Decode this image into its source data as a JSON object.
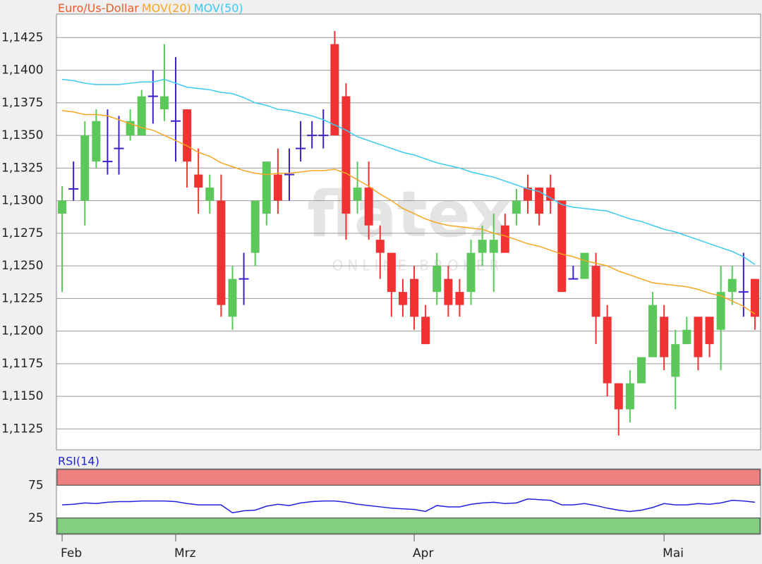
{
  "chart_data": [
    {
      "type": "candlestick",
      "name": "Euro/Us-Dollar",
      "color": "#f05a28",
      "color_up": "#5cc85c",
      "color_down": "#f03232",
      "color_doji": "#3a22c8",
      "categories": [
        "Feb",
        null,
        null,
        null,
        null,
        null,
        null,
        null,
        null,
        null,
        "Mrz",
        null,
        null,
        null,
        null,
        null,
        null,
        null,
        null,
        null,
        null,
        null,
        null,
        null,
        null,
        null,
        null,
        null,
        null,
        null,
        null,
        "Apr",
        null,
        null,
        null,
        null,
        null,
        null,
        null,
        null,
        null,
        null,
        null,
        null,
        null,
        null,
        null,
        null,
        null,
        null,
        null,
        null,
        null,
        "Mai",
        null,
        null,
        null,
        null,
        null,
        null,
        null,
        null
      ],
      "open": [
        1.129,
        1.1309,
        1.13,
        1.133,
        1.133,
        1.134,
        1.135,
        1.135,
        1.138,
        1.137,
        1.1361,
        1.137,
        1.132,
        1.13,
        1.13,
        1.1211,
        1.124,
        1.126,
        1.129,
        1.132,
        1.132,
        1.134,
        1.135,
        1.135,
        1.142,
        1.138,
        1.13,
        1.131,
        1.127,
        1.126,
        1.123,
        1.124,
        1.1211,
        1.123,
        1.124,
        1.123,
        1.123,
        1.126,
        1.126,
        1.1281,
        1.129,
        1.131,
        1.131,
        1.131,
        1.13,
        1.124,
        1.124,
        1.125,
        1.1211,
        1.116,
        1.114,
        1.116,
        1.118,
        1.1211,
        1.1165,
        1.119,
        1.1211,
        1.1211,
        1.1201,
        1.123,
        1.123,
        1.124
      ],
      "high": [
        1.1311,
        1.133,
        1.1361,
        1.137,
        1.137,
        1.1365,
        1.137,
        1.1385,
        1.14,
        1.142,
        1.141,
        1.137,
        1.134,
        1.132,
        1.132,
        1.125,
        1.126,
        1.13,
        1.133,
        1.134,
        1.134,
        1.1361,
        1.1361,
        1.137,
        1.143,
        1.139,
        1.133,
        1.133,
        1.1281,
        1.126,
        1.124,
        1.125,
        1.122,
        1.126,
        1.125,
        1.124,
        1.127,
        1.1281,
        1.129,
        1.129,
        1.1309,
        1.132,
        1.131,
        1.132,
        1.13,
        1.125,
        1.126,
        1.126,
        1.122,
        1.116,
        1.117,
        1.118,
        1.123,
        1.122,
        1.1201,
        1.1211,
        1.1211,
        1.1211,
        1.125,
        1.125,
        1.126,
        1.124
      ],
      "low": [
        1.123,
        1.13,
        1.1281,
        1.1325,
        1.132,
        1.132,
        1.1346,
        1.135,
        1.1359,
        1.1361,
        1.133,
        1.131,
        1.129,
        1.129,
        1.1211,
        1.1201,
        1.122,
        1.125,
        1.1281,
        1.129,
        1.13,
        1.133,
        1.134,
        1.134,
        1.135,
        1.127,
        1.129,
        1.127,
        1.124,
        1.1211,
        1.1211,
        1.1201,
        1.119,
        1.122,
        1.1211,
        1.1211,
        1.122,
        1.125,
        1.123,
        1.126,
        1.1281,
        1.129,
        1.1281,
        1.129,
        1.123,
        1.124,
        1.124,
        1.119,
        1.115,
        1.112,
        1.113,
        1.116,
        1.118,
        1.117,
        1.114,
        1.119,
        1.117,
        1.118,
        1.117,
        1.122,
        1.1211,
        1.1201
      ],
      "close": [
        1.13,
        1.1309,
        1.135,
        1.1361,
        1.133,
        1.134,
        1.1361,
        1.138,
        1.138,
        1.138,
        1.1361,
        1.133,
        1.131,
        1.131,
        1.122,
        1.124,
        1.124,
        1.13,
        1.133,
        1.13,
        1.132,
        1.134,
        1.135,
        1.135,
        1.135,
        1.129,
        1.131,
        1.1281,
        1.126,
        1.123,
        1.122,
        1.1211,
        1.119,
        1.125,
        1.122,
        1.122,
        1.126,
        1.127,
        1.127,
        1.126,
        1.13,
        1.13,
        1.129,
        1.13,
        1.123,
        1.124,
        1.126,
        1.1211,
        1.116,
        1.114,
        1.116,
        1.118,
        1.122,
        1.118,
        1.119,
        1.1201,
        1.118,
        1.119,
        1.123,
        1.124,
        1.123,
        1.1211
      ],
      "series": [
        {
          "name": "MOV(20)",
          "color": "#f5a623",
          "values": [
            1.1369,
            1.1368,
            1.1366,
            1.1366,
            1.1365,
            1.1362,
            1.1359,
            1.1356,
            1.1354,
            1.135,
            1.1346,
            1.1342,
            1.1337,
            1.1334,
            1.1329,
            1.1326,
            1.1323,
            1.1321,
            1.132,
            1.1321,
            1.1321,
            1.1322,
            1.1323,
            1.1323,
            1.1324,
            1.1321,
            1.1316,
            1.1311,
            1.1305,
            1.13,
            1.1294,
            1.129,
            1.1286,
            1.1283,
            1.1281,
            1.128,
            1.1279,
            1.1278,
            1.1275,
            1.1273,
            1.127,
            1.1267,
            1.1265,
            1.1262,
            1.1259,
            1.1257,
            1.1254,
            1.1252,
            1.125,
            1.1246,
            1.1243,
            1.124,
            1.1237,
            1.1236,
            1.1235,
            1.1234,
            1.1232,
            1.1229,
            1.1227,
            1.1223,
            1.1219,
            1.1213
          ]
        },
        {
          "name": "MOV(50)",
          "color": "#3cc8f0",
          "values": [
            1.1393,
            1.1392,
            1.139,
            1.1389,
            1.1389,
            1.1389,
            1.139,
            1.1391,
            1.1391,
            1.1393,
            1.139,
            1.1387,
            1.1386,
            1.1385,
            1.1383,
            1.1382,
            1.1379,
            1.1375,
            1.1373,
            1.137,
            1.1369,
            1.1367,
            1.1365,
            1.1362,
            1.1358,
            1.1354,
            1.1349,
            1.1346,
            1.1343,
            1.134,
            1.1337,
            1.1335,
            1.1332,
            1.1329,
            1.1327,
            1.1325,
            1.1322,
            1.132,
            1.1318,
            1.1315,
            1.1312,
            1.1309,
            1.1307,
            1.1302,
            1.1297,
            1.1295,
            1.1294,
            1.1293,
            1.1292,
            1.1289,
            1.1286,
            1.1284,
            1.1281,
            1.1278,
            1.1276,
            1.1273,
            1.127,
            1.1267,
            1.1264,
            1.1261,
            1.1257,
            1.1251
          ]
        }
      ],
      "ylim": [
        1.1109,
        1.1443
      ],
      "yticks": [
        {
          "value": 1.1125,
          "label": "1,1125"
        },
        {
          "value": 1.115,
          "label": "1,1150"
        },
        {
          "value": 1.1175,
          "label": "1,1175"
        },
        {
          "value": 1.12,
          "label": "1,1200"
        },
        {
          "value": 1.1225,
          "label": "1,1225"
        },
        {
          "value": 1.125,
          "label": "1,1250"
        },
        {
          "value": 1.1275,
          "label": "1,1275"
        },
        {
          "value": 1.13,
          "label": "1,1300"
        },
        {
          "value": 1.1325,
          "label": "1,1325"
        },
        {
          "value": 1.135,
          "label": "1,1350"
        },
        {
          "value": 1.1375,
          "label": "1,1375"
        },
        {
          "value": 1.14,
          "label": "1,1400"
        },
        {
          "value": 1.1425,
          "label": "1,1425"
        }
      ],
      "grid": true,
      "watermark": "flatex",
      "watermark_sub": "ONLINE BROKER"
    },
    {
      "type": "line",
      "series": [
        {
          "name": "RSI(14)",
          "color": "#2020e0",
          "values": [
            45,
            46,
            48,
            47,
            49,
            50,
            50,
            51,
            51,
            51,
            50,
            47,
            45,
            45,
            45,
            33,
            36,
            37,
            43,
            46,
            44,
            48,
            50,
            51,
            51,
            49,
            46,
            44,
            42,
            40,
            39,
            38,
            35,
            44,
            42,
            42,
            46,
            48,
            49,
            47,
            48,
            54,
            53,
            52,
            45,
            45,
            47,
            44,
            40,
            37,
            35,
            37,
            41,
            47,
            45,
            45,
            47,
            46,
            48,
            52,
            51,
            49
          ]
        }
      ],
      "ylim": [
        0,
        100
      ],
      "yticks": [
        25,
        75
      ],
      "band_colors": [
        "#80d080",
        "#f08080"
      ]
    }
  ]
}
